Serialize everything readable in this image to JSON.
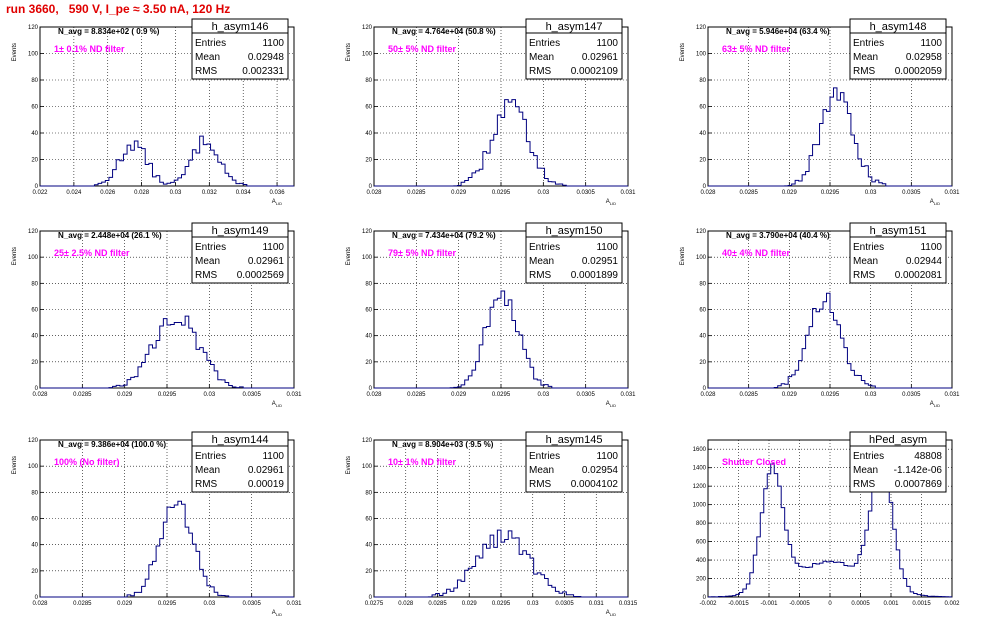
{
  "run_title": "run 3660,   590 V, I_pe ≈ 3.50 nA, 120 Hz",
  "colors": {
    "title": "#e00000",
    "hist": "#000080",
    "filter_label": "#ff00ff",
    "grid": "#000000"
  },
  "chart_data": [
    {
      "type": "histogram",
      "name": "h_asym146",
      "title": "h_asym146",
      "stats": {
        "entries_label": "Entries",
        "entries": "1100",
        "mean_label": "Mean",
        "mean": "0.02948",
        "rms_label": "RMS",
        "rms": "0.002331"
      },
      "n_avg_label": "N_avg = 8.834e+02 ( 0.9 %)",
      "filter_label": "1± 0.1% ND filter",
      "ylabel": "Events",
      "xlabel": "A_LID",
      "xlim": [
        0.022,
        0.037
      ],
      "ylim": [
        0,
        120
      ],
      "xticks": [
        0.022,
        0.024,
        0.026,
        0.028,
        0.03,
        0.032,
        0.034,
        0.036
      ],
      "xtick_labels": [
        "0.022",
        "0.024",
        "0.026",
        "0.028",
        "0.03",
        "0.032",
        "0.034",
        "0.036"
      ],
      "yticks": [
        0,
        20,
        40,
        60,
        80,
        100,
        120
      ],
      "ytick_labels": [
        "0",
        "20",
        "40",
        "60",
        "80",
        "100",
        "120"
      ],
      "peaks": [
        [
          0.0275,
          0.0008,
          32
        ],
        [
          0.0318,
          0.0008,
          35
        ]
      ]
    },
    {
      "type": "histogram",
      "name": "h_asym147",
      "title": "h_asym147",
      "stats": {
        "entries_label": "Entries",
        "entries": "1100",
        "mean_label": "Mean",
        "mean": "0.02961",
        "rms_label": "RMS",
        "rms": "0.0002109"
      },
      "n_avg_label": "N_avg = 4.764e+04 (50.8 %)",
      "filter_label": "50± 5% ND filter",
      "ylabel": "Events",
      "xlabel": "A_LID",
      "xlim": [
        0.028,
        0.031
      ],
      "ylim": [
        0,
        120
      ],
      "xticks": [
        0.028,
        0.0285,
        0.029,
        0.0295,
        0.03,
        0.0305,
        0.031
      ],
      "xtick_labels": [
        "0.028",
        "0.0285",
        "0.029",
        "0.0295",
        "0.03",
        "0.0305",
        "0.031"
      ],
      "yticks": [
        0,
        20,
        40,
        60,
        80,
        100,
        120
      ],
      "ytick_labels": [
        "0",
        "20",
        "40",
        "60",
        "80",
        "100",
        "120"
      ],
      "peaks": [
        [
          0.02961,
          0.00021,
          62
        ]
      ]
    },
    {
      "type": "histogram",
      "name": "h_asym148",
      "title": "h_asym148",
      "stats": {
        "entries_label": "Entries",
        "entries": "1100",
        "mean_label": "Mean",
        "mean": "0.02958",
        "rms_label": "RMS",
        "rms": "0.0002059"
      },
      "n_avg_label": "N_avg = 5.946e+04 (63.4 %)",
      "filter_label": "63± 5% ND filter",
      "ylabel": "Events",
      "xlabel": "A_LID",
      "xlim": [
        0.028,
        0.031
      ],
      "ylim": [
        0,
        120
      ],
      "xticks": [
        0.028,
        0.0285,
        0.029,
        0.0295,
        0.03,
        0.0305,
        0.031
      ],
      "xtick_labels": [
        "0.028",
        "0.0285",
        "0.029",
        "0.0295",
        "0.03",
        "0.0305",
        "0.031"
      ],
      "yticks": [
        0,
        20,
        40,
        60,
        80,
        100,
        120
      ],
      "ytick_labels": [
        "0",
        "20",
        "40",
        "60",
        "80",
        "100",
        "120"
      ],
      "peaks": [
        [
          0.02958,
          0.0002,
          68
        ]
      ]
    },
    {
      "type": "histogram",
      "name": "h_asym149",
      "title": "h_asym149",
      "stats": {
        "entries_label": "Entries",
        "entries": "1100",
        "mean_label": "Mean",
        "mean": "0.02961",
        "rms_label": "RMS",
        "rms": "0.0002569"
      },
      "n_avg_label": "N_avg = 2.448e+04 (26.1 %)",
      "filter_label": "25± 2.5% ND filter",
      "ylabel": "Events",
      "xlabel": "A_LID",
      "xlim": [
        0.028,
        0.031
      ],
      "ylim": [
        0,
        120
      ],
      "xticks": [
        0.028,
        0.0285,
        0.029,
        0.0295,
        0.03,
        0.0305,
        0.031
      ],
      "xtick_labels": [
        "0.028",
        "0.0285",
        "0.029",
        "0.0295",
        "0.03",
        "0.0305",
        "0.031"
      ],
      "yticks": [
        0,
        20,
        40,
        60,
        80,
        100,
        120
      ],
      "ytick_labels": [
        "0",
        "20",
        "40",
        "60",
        "80",
        "100",
        "120"
      ],
      "peaks": [
        [
          0.02961,
          0.00026,
          56
        ]
      ]
    },
    {
      "type": "histogram",
      "name": "h_asym150",
      "title": "h_asym150",
      "stats": {
        "entries_label": "Entries",
        "entries": "1100",
        "mean_label": "Mean",
        "mean": "0.02951",
        "rms_label": "RMS",
        "rms": "0.0001899"
      },
      "n_avg_label": "N_avg = 7.434e+04 (79.2 %)",
      "filter_label": "79± 5% ND filter",
      "ylabel": "Events",
      "xlabel": "A_LID",
      "xlim": [
        0.028,
        0.031
      ],
      "ylim": [
        0,
        120
      ],
      "xticks": [
        0.028,
        0.0285,
        0.029,
        0.0295,
        0.03,
        0.0305,
        0.031
      ],
      "xtick_labels": [
        "0.028",
        "0.0285",
        "0.029",
        "0.0295",
        "0.03",
        "0.0305",
        "0.031"
      ],
      "yticks": [
        0,
        20,
        40,
        60,
        80,
        100,
        120
      ],
      "ytick_labels": [
        "0",
        "20",
        "40",
        "60",
        "80",
        "100",
        "120"
      ],
      "peaks": [
        [
          0.02951,
          0.00019,
          72
        ]
      ]
    },
    {
      "type": "histogram",
      "name": "h_asym151",
      "title": "h_asym151",
      "stats": {
        "entries_label": "Entries",
        "entries": "1100",
        "mean_label": "Mean",
        "mean": "0.02944",
        "rms_label": "RMS",
        "rms": "0.0002081"
      },
      "n_avg_label": "N_avg = 3.790e+04 (40.4 %)",
      "filter_label": "40± 4% ND filter",
      "ylabel": "Events",
      "xlabel": "A_LID",
      "xlim": [
        0.028,
        0.031
      ],
      "ylim": [
        0,
        120
      ],
      "xticks": [
        0.028,
        0.0285,
        0.029,
        0.0295,
        0.03,
        0.0305,
        0.031
      ],
      "xtick_labels": [
        "0.028",
        "0.0285",
        "0.029",
        "0.0295",
        "0.03",
        "0.0305",
        "0.031"
      ],
      "yticks": [
        0,
        20,
        40,
        60,
        80,
        100,
        120
      ],
      "ytick_labels": [
        "0",
        "20",
        "40",
        "60",
        "80",
        "100",
        "120"
      ],
      "peaks": [
        [
          0.02944,
          0.0002,
          68
        ]
      ]
    },
    {
      "type": "histogram",
      "name": "h_asym144",
      "title": "h_asym144",
      "stats": {
        "entries_label": "Entries",
        "entries": "1100",
        "mean_label": "Mean",
        "mean": "0.02961",
        "rms_label": "RMS",
        "rms": "0.00019"
      },
      "n_avg_label": "N_avg = 9.386e+04 (100.0 %)",
      "filter_label": "100% (No filter)",
      "ylabel": "Events",
      "xlabel": "A_LID",
      "xlim": [
        0.028,
        0.031
      ],
      "ylim": [
        0,
        120
      ],
      "xticks": [
        0.028,
        0.0285,
        0.029,
        0.0295,
        0.03,
        0.0305,
        0.031
      ],
      "xtick_labels": [
        "0.028",
        "0.0285",
        "0.029",
        "0.0295",
        "0.03",
        "0.0305",
        "0.031"
      ],
      "yticks": [
        0,
        20,
        40,
        60,
        80,
        100,
        120
      ],
      "ytick_labels": [
        "0",
        "20",
        "40",
        "60",
        "80",
        "100",
        "120"
      ],
      "peaks": [
        [
          0.02961,
          0.00019,
          74
        ]
      ]
    },
    {
      "type": "histogram",
      "name": "h_asym145",
      "title": "h_asym145",
      "stats": {
        "entries_label": "Entries",
        "entries": "1100",
        "mean_label": "Mean",
        "mean": "0.02954",
        "rms_label": "RMS",
        "rms": "0.0004102"
      },
      "n_avg_label": "N_avg = 8.904e+03 ( 9.5 %)",
      "filter_label": "10± 1% ND filter",
      "ylabel": "Events",
      "xlabel": "A_LID",
      "xlim": [
        0.0275,
        0.0315
      ],
      "ylim": [
        0,
        120
      ],
      "xticks": [
        0.0275,
        0.028,
        0.0285,
        0.029,
        0.0295,
        0.03,
        0.0305,
        0.031,
        0.0315
      ],
      "xtick_labels": [
        "0.0275",
        "0.028",
        "0.0285",
        "0.029",
        "0.0295",
        "0.03",
        "0.0305",
        "0.031",
        "0.0315"
      ],
      "yticks": [
        0,
        20,
        40,
        60,
        80,
        100,
        120
      ],
      "ytick_labels": [
        "0",
        "20",
        "40",
        "60",
        "80",
        "100",
        "120"
      ],
      "peaks": [
        [
          0.02954,
          0.00041,
          46
        ]
      ]
    },
    {
      "type": "histogram",
      "name": "hPed_asym",
      "title": "hPed_asym",
      "stats": {
        "entries_label": "Entries",
        "entries": "48808",
        "mean_label": "Mean",
        "mean": "-1.142e-06",
        "rms_label": "RMS",
        "rms": "0.0007869"
      },
      "n_avg_label": "",
      "filter_label": "Shutter Closed",
      "ylabel": "",
      "xlabel": "",
      "xlim": [
        -0.002,
        0.002
      ],
      "ylim": [
        0,
        1700
      ],
      "xticks": [
        -0.002,
        -0.0015,
        -0.001,
        -0.0005,
        0,
        0.0005,
        0.001,
        0.0015,
        0.002
      ],
      "xtick_labels": [
        "-0.002",
        "-0.0015",
        "-0.001",
        "-0.0005",
        "0",
        "0.0005",
        "0.001",
        "0.0015",
        "0.002"
      ],
      "yticks": [
        0,
        200,
        400,
        600,
        800,
        1000,
        1200,
        1400,
        1600
      ],
      "ytick_labels": [
        "0",
        "200",
        "400",
        "600",
        "800",
        "1000",
        "1200",
        "1400",
        "1600"
      ],
      "peaks": [
        [
          -0.00095,
          0.00018,
          1300
        ],
        [
          0.00085,
          0.00018,
          1300
        ],
        [
          0,
          0.0006,
          380
        ]
      ]
    }
  ]
}
